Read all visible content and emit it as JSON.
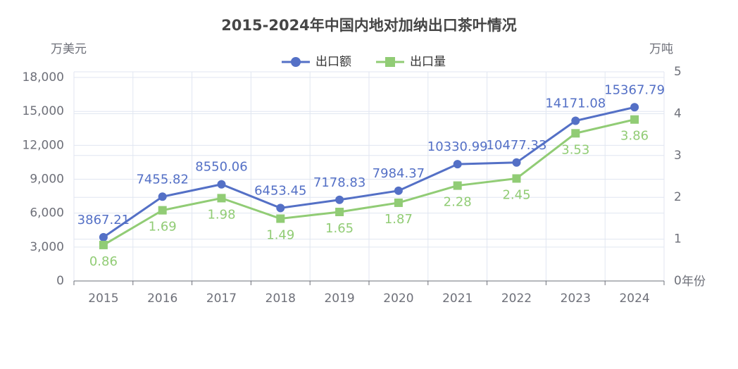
{
  "chart_data": {
    "type": "line",
    "title": "2015-2024年中国内地对加纳出口茶叶情况",
    "y_axis_label": "万美元",
    "y2_axis_label": "万吨",
    "x_axis_label": "年份",
    "categories": [
      "2015",
      "2016",
      "2017",
      "2018",
      "2019",
      "2020",
      "2021",
      "2022",
      "2023",
      "2024"
    ],
    "series": [
      {
        "name": "出口额",
        "color": "#5470c6",
        "values": [
          3867.21,
          7455.82,
          8550.06,
          6453.45,
          7178.83,
          7984.37,
          10330.99,
          10477.33,
          14171.08,
          15367.79
        ]
      },
      {
        "name": "出口量",
        "color": "#91cc75",
        "axis": "y2",
        "values": [
          0.86,
          1.69,
          1.98,
          1.49,
          1.65,
          1.87,
          2.28,
          2.45,
          3.53,
          3.86
        ]
      }
    ],
    "ylim": [
      0,
      18500
    ],
    "yticks": [
      0,
      {
        "value": 3000,
        "label": "3,000"
      },
      {
        "value": 6000,
        "label": "6,000"
      },
      {
        "value": 9000,
        "label": "9,000"
      },
      {
        "value": 12000,
        "label": "12,000"
      },
      {
        "value": 15000,
        "label": "15,000"
      },
      {
        "value": 18000,
        "label": "18,000"
      }
    ],
    "y2lim": [
      0,
      5
    ],
    "y2ticks": [
      0,
      1,
      2,
      3,
      4,
      5
    ],
    "grid": true,
    "legend": "top"
  }
}
